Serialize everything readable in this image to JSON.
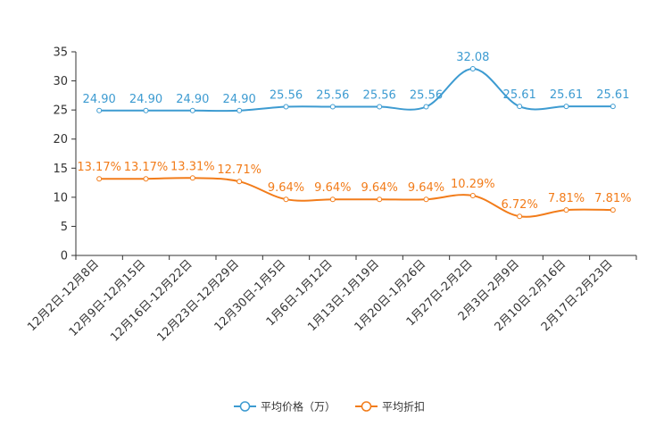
{
  "chart_data": {
    "type": "line",
    "title": "",
    "xlabel": "",
    "ylabel": "",
    "ylim": [
      0,
      35
    ],
    "yticks": [
      0,
      5,
      10,
      15,
      20,
      25,
      30,
      35
    ],
    "categories": [
      "12月2日-12月8日",
      "12月9日-12月15日",
      "12月16日-12月22日",
      "12月23日-12月29日",
      "12月30日-1月5日",
      "1月6日-1月12日",
      "1月13日-1月19日",
      "1月20日-1月26日",
      "1月27日-2月2日",
      "2月3日-2月9日",
      "2月10日-2月16日",
      "2月17日-2月23日"
    ],
    "legend_position": "bottom",
    "series": [
      {
        "name": "平均价格（万）",
        "color": "#3d9bd1",
        "values": [
          24.9,
          24.9,
          24.9,
          24.9,
          25.56,
          25.56,
          25.56,
          25.56,
          32.08,
          25.61,
          25.61,
          25.61
        ],
        "labels": [
          "24.90",
          "24.90",
          "24.90",
          "24.90",
          "25.56",
          "25.56",
          "25.56",
          "25.56",
          "32.08",
          "25.61",
          "25.61",
          "25.61"
        ]
      },
      {
        "name": "平均折扣",
        "color": "#f27c1a",
        "values": [
          13.17,
          13.17,
          13.31,
          12.71,
          9.64,
          9.64,
          9.64,
          9.64,
          10.29,
          6.72,
          7.81,
          7.81
        ],
        "labels": [
          "13.17%",
          "13.17%",
          "13.31%",
          "12.71%",
          "9.64%",
          "9.64%",
          "9.64%",
          "9.64%",
          "10.29%",
          "6.72%",
          "7.81%",
          "7.81%"
        ]
      }
    ]
  }
}
